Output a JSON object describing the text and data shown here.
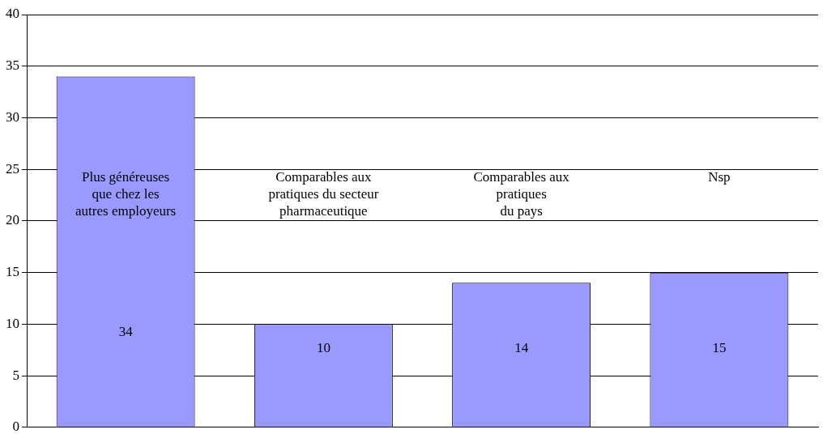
{
  "chart_data": {
    "type": "bar",
    "categories": [
      "Plus généreuses\nque chez les\nautres employeurs",
      "Comparables aux\npratiques du secteur\npharmaceutique",
      "Comparables aux\npratiques\ndu pays",
      "Nsp"
    ],
    "values": [
      34,
      10,
      14,
      15
    ],
    "color": "#9999ff",
    "ylim": [
      0,
      40
    ],
    "yticks": [
      0,
      5,
      10,
      15,
      20,
      25,
      30,
      35,
      40
    ],
    "grid": "y",
    "legend": false,
    "data_labels": true
  }
}
